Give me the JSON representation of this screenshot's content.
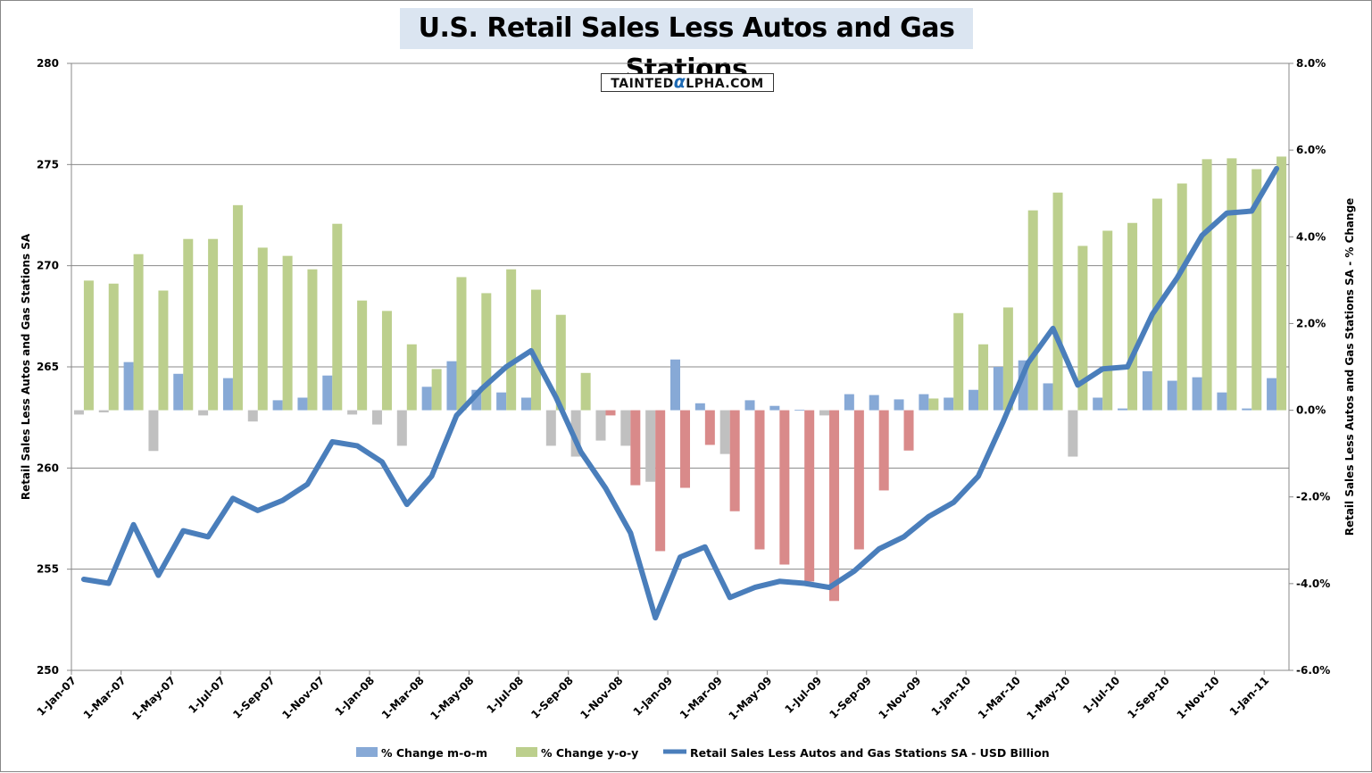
{
  "chart_data": {
    "type": "bar",
    "title": "U.S. Retail Sales Less Autos and Gas Stations",
    "watermark": "TAINTEDαLPHA.COM",
    "ylabel_left": "Retail Sales Less Autos and Gas Stations SA",
    "ylabel_right": "Retail Sales Less Autos and Gas Stations SA - % Change",
    "ylim_left": [
      250,
      280
    ],
    "yticks_left": [
      "250",
      "255",
      "260",
      "265",
      "270",
      "275",
      "280"
    ],
    "ylim_right": [
      -6,
      8
    ],
    "yticks_right": [
      "-6.0%",
      "-4.0%",
      "-2.0%",
      "0.0%",
      "2.0%",
      "4.0%",
      "6.0%",
      "8.0%"
    ],
    "xtick_labels": [
      "1-Jan-07",
      "1-Mar-07",
      "1-May-07",
      "1-Jul-07",
      "1-Sep-07",
      "1-Nov-07",
      "1-Jan-08",
      "1-Mar-08",
      "1-May-08",
      "1-Jul-08",
      "1-Sep-08",
      "1-Nov-08",
      "1-Jan-09",
      "1-Mar-09",
      "1-May-09",
      "1-Jul-09",
      "1-Sep-09",
      "1-Nov-09",
      "1-Jan-10",
      "1-Mar-10",
      "1-May-10",
      "1-Jul-10",
      "1-Sep-10",
      "1-Nov-10",
      "1-Jan-11"
    ],
    "x": [
      "Jan-07",
      "Feb-07",
      "Mar-07",
      "Apr-07",
      "May-07",
      "Jun-07",
      "Jul-07",
      "Aug-07",
      "Sep-07",
      "Oct-07",
      "Nov-07",
      "Dec-07",
      "Jan-08",
      "Feb-08",
      "Mar-08",
      "Apr-08",
      "May-08",
      "Jun-08",
      "Jul-08",
      "Aug-08",
      "Sep-08",
      "Oct-08",
      "Nov-08",
      "Dec-08",
      "Jan-09",
      "Feb-09",
      "Mar-09",
      "Apr-09",
      "May-09",
      "Jun-09",
      "Jul-09",
      "Aug-09",
      "Sep-09",
      "Oct-09",
      "Nov-09",
      "Dec-09",
      "Jan-10",
      "Feb-10",
      "Mar-10",
      "Apr-10",
      "May-10",
      "Jun-10",
      "Jul-10",
      "Aug-10",
      "Sep-10",
      "Oct-10",
      "Nov-10",
      "Dec-10",
      "Jan-11"
    ],
    "grid": true,
    "legend_position": "bottom",
    "series": [
      {
        "name": "% Change m-o-m",
        "axis": "right",
        "type": "bar",
        "color": "#87a9d6",
        "negative_color": "#c0c0c0",
        "values": [
          -0.1,
          -0.05,
          1.11,
          -0.94,
          0.84,
          -0.12,
          0.74,
          -0.26,
          0.23,
          0.29,
          0.8,
          -0.1,
          -0.33,
          -0.82,
          0.54,
          1.13,
          0.47,
          0.41,
          0.29,
          -0.82,
          -1.07,
          -0.7,
          -0.82,
          -1.65,
          1.17,
          0.16,
          -1.01,
          0.23,
          0.1,
          0.01,
          -0.12,
          0.37,
          0.35,
          0.25,
          0.37,
          0.29,
          0.47,
          1.0,
          1.15,
          0.62,
          -1.07,
          0.29,
          0.04,
          0.9,
          0.68,
          0.76,
          0.41,
          0.04,
          0.74
        ]
      },
      {
        "name": "% Change y-o-y",
        "axis": "right",
        "type": "bar",
        "color": "#bccf8d",
        "negative_color": "#d98a8a",
        "values": [
          2.99,
          2.92,
          3.6,
          2.76,
          3.95,
          3.95,
          4.73,
          3.75,
          3.56,
          3.25,
          4.3,
          2.53,
          2.29,
          1.52,
          0.95,
          3.07,
          2.7,
          3.25,
          2.78,
          2.2,
          0.86,
          -0.12,
          -1.73,
          -3.25,
          -1.79,
          -0.8,
          -2.33,
          -3.21,
          -3.56,
          -3.95,
          -4.4,
          -3.21,
          -1.85,
          -0.93,
          0.27,
          2.24,
          1.52,
          2.37,
          4.61,
          5.02,
          3.79,
          4.14,
          4.32,
          4.88,
          5.23,
          5.79,
          5.81,
          5.56,
          5.85
        ]
      },
      {
        "name": "Retail Sales Less Autos and Gas Stations SA - USD Billion",
        "axis": "left",
        "type": "line",
        "color": "#4a7ebb",
        "values": [
          254.5,
          254.3,
          257.2,
          254.7,
          256.9,
          256.6,
          258.5,
          257.9,
          258.4,
          259.2,
          261.3,
          261.1,
          260.3,
          258.2,
          259.6,
          262.6,
          263.9,
          265.0,
          265.8,
          263.5,
          260.8,
          259.0,
          256.8,
          252.6,
          255.6,
          256.1,
          253.6,
          254.1,
          254.4,
          254.3,
          254.1,
          254.9,
          256.0,
          256.6,
          257.6,
          258.3,
          259.6,
          262.3,
          265.2,
          266.9,
          264.1,
          264.9,
          265.0,
          267.6,
          269.4,
          271.5,
          272.6,
          272.7,
          274.8
        ]
      }
    ]
  }
}
